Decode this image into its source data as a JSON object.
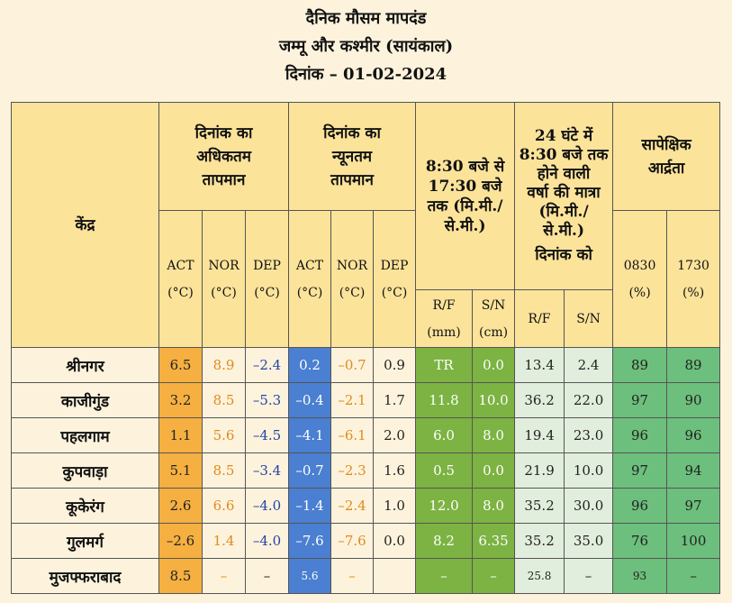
{
  "title": {
    "line1": "दैनिक मौसम मापदंड",
    "line2": "जम्मू और कश्मीर (सायंकाल)",
    "line3": "दिनांक – 01-02-2024"
  },
  "headers": {
    "station": "केंद्र",
    "max_temp": [
      "दिनांक का",
      "अधिकतम",
      "तापमान"
    ],
    "min_temp": [
      "दिनांक का",
      "न्यूनतम",
      "तापमान"
    ],
    "day_precip": [
      "8:30 बजे से",
      "17:30 बजे",
      "तक (मि.मी./",
      "से.मी.)"
    ],
    "precip_24h": [
      "24 घंटे में",
      "8:30 बजे तक",
      "होने वाली",
      "वर्षा की मात्रा",
      "(मि.मी./",
      "से.मी.)",
      "दिनांक को"
    ],
    "humidity": [
      "सापेक्षिक",
      "आर्द्रता"
    ],
    "act": "ACT",
    "nor": "NOR",
    "dep": "DEP",
    "unit_c": "(°C)",
    "rf": "R/F",
    "sn": "S/N",
    "mm": "(mm)",
    "cm": "(cm)",
    "h0830": "0830",
    "h1730": "1730",
    "pct": "(%)"
  },
  "rows": [
    {
      "station": "श्रीनगर",
      "max_act": "6.5",
      "max_nor": "8.9",
      "max_dep": "–2.4",
      "min_act": "0.2",
      "min_nor": "–0.7",
      "min_dep": "0.9",
      "rf_day": "TR",
      "sn_day": "0.0",
      "rf_24": "13.4",
      "sn_24": "2.4",
      "rh_0830": "89",
      "rh_1730": "89"
    },
    {
      "station": "काजीगुंड",
      "max_act": "3.2",
      "max_nor": "8.5",
      "max_dep": "–5.3",
      "min_act": "–0.4",
      "min_nor": "–2.1",
      "min_dep": "1.7",
      "rf_day": "11.8",
      "sn_day": "10.0",
      "rf_24": "36.2",
      "sn_24": "22.0",
      "rh_0830": "97",
      "rh_1730": "90"
    },
    {
      "station": "पहलगाम",
      "max_act": "1.1",
      "max_nor": "5.6",
      "max_dep": "–4.5",
      "min_act": "–4.1",
      "min_nor": "–6.1",
      "min_dep": "2.0",
      "rf_day": "6.0",
      "sn_day": "8.0",
      "rf_24": "19.4",
      "sn_24": "23.0",
      "rh_0830": "96",
      "rh_1730": "96"
    },
    {
      "station": "कुपवाड़ा",
      "max_act": "5.1",
      "max_nor": "8.5",
      "max_dep": "–3.4",
      "min_act": "–0.7",
      "min_nor": "–2.3",
      "min_dep": "1.6",
      "rf_day": "0.5",
      "sn_day": "0.0",
      "rf_24": "21.9",
      "sn_24": "10.0",
      "rh_0830": "97",
      "rh_1730": "94"
    },
    {
      "station": "कूकेरंग",
      "max_act": "2.6",
      "max_nor": "6.6",
      "max_dep": "–4.0",
      "min_act": "–1.4",
      "min_nor": "–2.4",
      "min_dep": "1.0",
      "rf_day": "12.0",
      "sn_day": "8.0",
      "rf_24": "35.2",
      "sn_24": "30.0",
      "rh_0830": "96",
      "rh_1730": "97"
    },
    {
      "station": "गुलमर्ग",
      "max_act": "–2.6",
      "max_nor": "1.4",
      "max_dep": "–4.0",
      "min_act": "–7.6",
      "min_nor": "–7.6",
      "min_dep": "0.0",
      "rf_day": "8.2",
      "sn_day": "6.35",
      "rf_24": "35.2",
      "sn_24": "35.0",
      "rh_0830": "76",
      "rh_1730": "100"
    },
    {
      "station": "मुजफ्फराबाद",
      "max_act": "8.5",
      "max_nor": "–",
      "max_dep": "–",
      "min_act": "5.6",
      "min_nor": "–",
      "min_dep": "",
      "rf_day": "–",
      "sn_day": "–",
      "rf_24": "25.8",
      "sn_24": "–",
      "rh_0830": "93",
      "rh_1730": "–"
    }
  ]
}
